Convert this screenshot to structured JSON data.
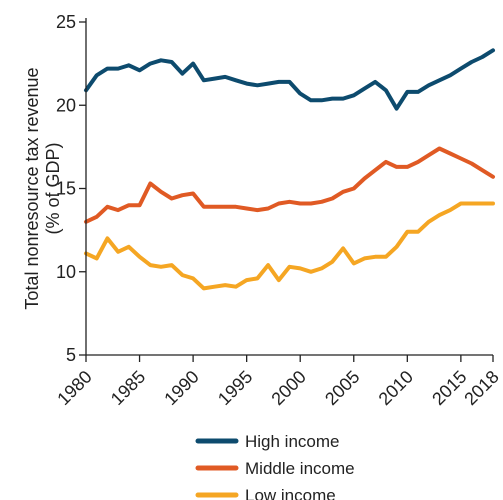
{
  "chart_data": {
    "type": "line",
    "ylabel_lines": [
      "Total nonresource tax revenue",
      "(% of GDP)"
    ],
    "ylim": [
      5,
      25
    ],
    "yticks": [
      5,
      10,
      15,
      20,
      25
    ],
    "xlim": [
      1980,
      2018
    ],
    "xticks": [
      1980,
      1985,
      1990,
      1995,
      2000,
      2005,
      2010,
      2015,
      2018
    ],
    "grid": false,
    "legend_position": "bottom",
    "x": [
      1980,
      1981,
      1982,
      1983,
      1984,
      1985,
      1986,
      1987,
      1988,
      1989,
      1990,
      1991,
      1992,
      1993,
      1994,
      1995,
      1996,
      1997,
      1998,
      1999,
      2000,
      2001,
      2002,
      2003,
      2004,
      2005,
      2006,
      2007,
      2008,
      2009,
      2010,
      2011,
      2012,
      2013,
      2014,
      2015,
      2016,
      2017,
      2018
    ],
    "series": [
      {
        "name": "High income",
        "color": "#0d4b6e",
        "values": [
          20.9,
          21.8,
          22.2,
          22.2,
          22.4,
          22.1,
          22.5,
          22.7,
          22.6,
          21.9,
          22.5,
          21.5,
          21.6,
          21.7,
          21.5,
          21.3,
          21.2,
          21.3,
          21.4,
          21.4,
          20.7,
          20.3,
          20.3,
          20.4,
          20.4,
          20.6,
          21.0,
          21.4,
          20.9,
          19.8,
          20.8,
          20.8,
          21.2,
          21.5,
          21.8,
          22.2,
          22.6,
          22.9,
          23.3
        ]
      },
      {
        "name": "Middle income",
        "color": "#e05a24",
        "values": [
          13.0,
          13.3,
          13.9,
          13.7,
          14.0,
          14.0,
          15.3,
          14.8,
          14.4,
          14.6,
          14.7,
          13.9,
          13.9,
          13.9,
          13.9,
          13.8,
          13.7,
          13.8,
          14.1,
          14.2,
          14.1,
          14.1,
          14.2,
          14.4,
          14.8,
          15.0,
          15.6,
          16.1,
          16.6,
          16.3,
          16.3,
          16.6,
          17.0,
          17.4,
          17.1,
          16.8,
          16.5,
          16.1,
          15.7
        ]
      },
      {
        "name": "Low income",
        "color": "#f5a623",
        "values": [
          11.1,
          10.8,
          12.0,
          11.2,
          11.5,
          10.9,
          10.4,
          10.3,
          10.4,
          9.8,
          9.6,
          9.0,
          9.1,
          9.2,
          9.1,
          9.5,
          9.6,
          10.4,
          9.5,
          10.3,
          10.2,
          10.0,
          10.2,
          10.6,
          11.4,
          10.5,
          10.8,
          10.9,
          10.9,
          11.5,
          12.4,
          12.4,
          13.0,
          13.4,
          13.7,
          14.1,
          14.1,
          14.1,
          14.1
        ]
      }
    ]
  }
}
